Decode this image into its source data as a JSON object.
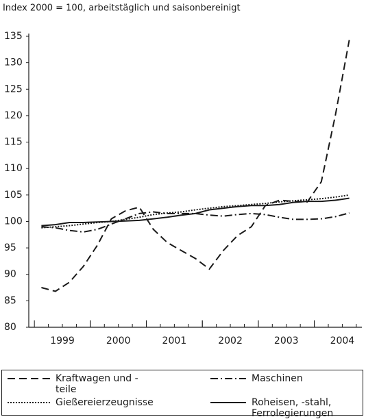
{
  "chart_data": {
    "type": "line",
    "subtitle": "Index 2000 = 100, arbeitstäglich und saisonbereinigt",
    "x": [
      1999.125,
      1999.375,
      1999.625,
      1999.875,
      2000.125,
      2000.375,
      2000.625,
      2000.875,
      2001.125,
      2001.375,
      2001.625,
      2001.875,
      2002.125,
      2002.375,
      2002.625,
      2002.875,
      2003.125,
      2003.375,
      2003.625,
      2003.875,
      2004.125,
      2004.375,
      2004.625
    ],
    "xlim": [
      1998.9,
      2004.85
    ],
    "xticks": [
      {
        "value": 1999.5,
        "label": "1999"
      },
      {
        "value": 2000.5,
        "label": "2000"
      },
      {
        "value": 2001.5,
        "label": "2001"
      },
      {
        "value": 2002.5,
        "label": "2002"
      },
      {
        "value": 2003.5,
        "label": "2003"
      },
      {
        "value": 2004.5,
        "label": "2004"
      }
    ],
    "ylim": [
      80,
      135
    ],
    "yticks": [
      80,
      85,
      90,
      95,
      100,
      105,
      110,
      115,
      120,
      125,
      130,
      135
    ],
    "grid": false,
    "series": [
      {
        "name": "Kraftwagen und -teile",
        "color": "#1a1a1a",
        "dash": "11,6",
        "values": [
          87.5,
          86.8,
          88.5,
          91.5,
          95.5,
          100.5,
          102,
          102.7,
          98.5,
          96,
          94.5,
          93,
          91,
          94.5,
          97.3,
          99,
          103,
          104,
          103.8,
          103.7,
          107.5,
          120,
          134.3
        ]
      },
      {
        "name": "Maschinen",
        "color": "#1a1a1a",
        "dash": "11,4,2,4",
        "values": [
          99,
          98.8,
          98.3,
          98,
          98.5,
          99.5,
          100.5,
          101.5,
          101.8,
          101.5,
          101.5,
          101.5,
          101.2,
          101,
          101.3,
          101.5,
          101.3,
          100.8,
          100.4,
          100.4,
          100.5,
          100.9,
          101.6
        ]
      },
      {
        "name": "Gießereierzeugnisse",
        "color": "#1a1a1a",
        "dash": "2,2",
        "values": [
          98.8,
          99,
          99.2,
          99.5,
          99.8,
          100,
          100.4,
          100.8,
          101.3,
          101.6,
          101.8,
          102.2,
          102.5,
          102.8,
          103,
          103.2,
          103.4,
          103.7,
          103.9,
          104.1,
          104.3,
          104.6,
          105
        ]
      },
      {
        "name": "Roheisen, -stahl, Ferrolegierungen",
        "color": "#1a1a1a",
        "dash": "none",
        "values": [
          99.2,
          99.4,
          99.8,
          99.8,
          99.9,
          100,
          100.1,
          100.2,
          100.5,
          100.8,
          101.2,
          101.5,
          102.2,
          102.5,
          102.8,
          103,
          103,
          103.2,
          103.6,
          103.8,
          103.8,
          104,
          104.4
        ]
      }
    ]
  }
}
